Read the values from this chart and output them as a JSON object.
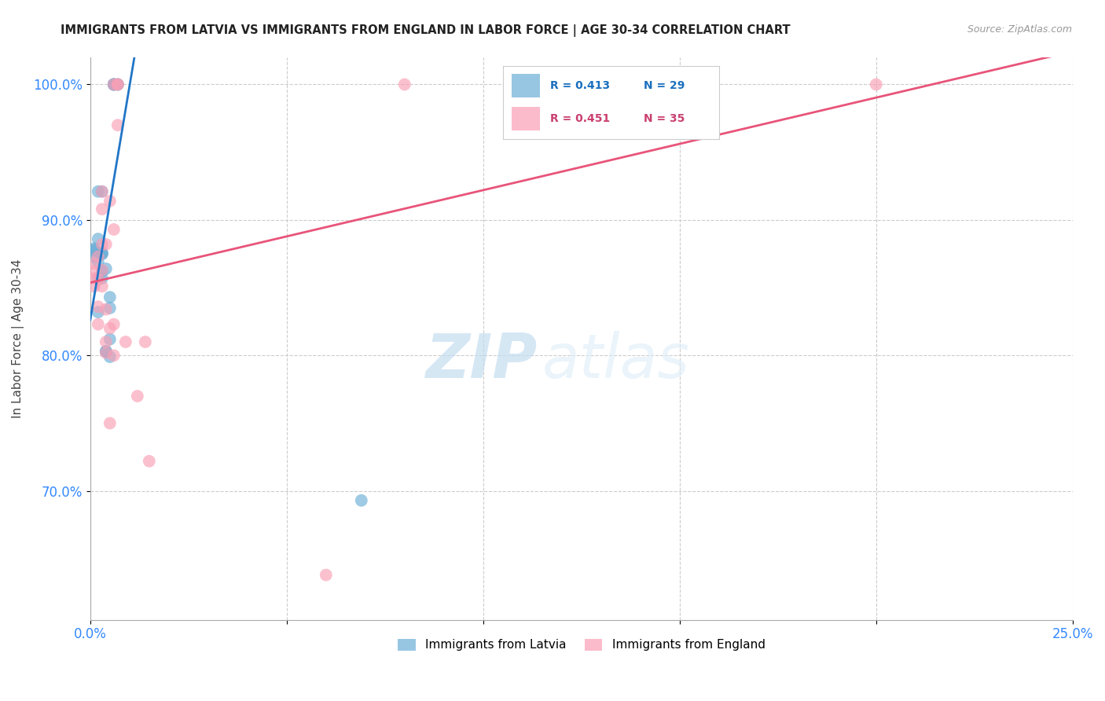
{
  "title": "IMMIGRANTS FROM LATVIA VS IMMIGRANTS FROM ENGLAND IN LABOR FORCE | AGE 30-34 CORRELATION CHART",
  "source": "Source: ZipAtlas.com",
  "xlabel": "",
  "ylabel": "In Labor Force | Age 30-34",
  "xlim": [
    0.0,
    0.25
  ],
  "ylim": [
    0.605,
    1.02
  ],
  "xticks": [
    0.0,
    0.05,
    0.1,
    0.15,
    0.2,
    0.25
  ],
  "xticklabels": [
    "0.0%",
    "",
    "",
    "",
    "",
    "25.0%"
  ],
  "yticks": [
    0.7,
    0.8,
    0.9,
    1.0
  ],
  "yticklabels": [
    "70.0%",
    "80.0%",
    "90.0%",
    "100.0%"
  ],
  "latvia_color": "#6baed6",
  "england_color": "#fa9fb5",
  "latvia_line_color": "#2176c7",
  "england_line_color": "#e8547a",
  "latvia_R": 0.413,
  "latvia_N": 29,
  "england_R": 0.451,
  "england_N": 35,
  "background_color": "#ffffff",
  "watermark_zip": "ZIP",
  "watermark_atlas": "atlas",
  "latvia_x": [
    0.001,
    0.001,
    0.001,
    0.001,
    0.002,
    0.002,
    0.002,
    0.002,
    0.002,
    0.003,
    0.003,
    0.003,
    0.003,
    0.003,
    0.003,
    0.004,
    0.004,
    0.004,
    0.005,
    0.005,
    0.005,
    0.005,
    0.006,
    0.006,
    0.006,
    0.006,
    0.007,
    0.007,
    0.069
  ],
  "latvia_y": [
    0.873,
    0.877,
    0.878,
    0.879,
    0.832,
    0.857,
    0.869,
    0.886,
    0.921,
    0.857,
    0.862,
    0.875,
    0.875,
    0.876,
    0.921,
    0.803,
    0.803,
    0.864,
    0.799,
    0.812,
    0.835,
    0.843,
    1.0,
    1.0,
    1.0,
    1.0,
    1.0,
    1.0,
    0.693
  ],
  "england_x": [
    0.001,
    0.001,
    0.001,
    0.001,
    0.002,
    0.002,
    0.002,
    0.002,
    0.003,
    0.003,
    0.003,
    0.003,
    0.003,
    0.004,
    0.004,
    0.004,
    0.004,
    0.005,
    0.005,
    0.005,
    0.006,
    0.006,
    0.006,
    0.006,
    0.007,
    0.007,
    0.007,
    0.009,
    0.012,
    0.014,
    0.015,
    0.06,
    0.08,
    0.12,
    0.2
  ],
  "england_y": [
    0.851,
    0.857,
    0.862,
    0.868,
    0.823,
    0.836,
    0.856,
    0.873,
    0.851,
    0.863,
    0.882,
    0.908,
    0.921,
    0.802,
    0.81,
    0.834,
    0.882,
    0.75,
    0.82,
    0.914,
    0.8,
    0.823,
    0.893,
    1.0,
    0.97,
    1.0,
    1.0,
    0.81,
    0.77,
    0.81,
    0.722,
    0.638,
    1.0,
    1.0,
    1.0
  ],
  "latvia_line_x0": 0.0,
  "latvia_line_y0": 0.883,
  "latvia_line_x1": 0.007,
  "latvia_line_y1": 1.005,
  "england_line_x0": 0.0,
  "england_line_y0": 0.842,
  "england_line_x1": 0.25,
  "england_line_y1": 1.015
}
